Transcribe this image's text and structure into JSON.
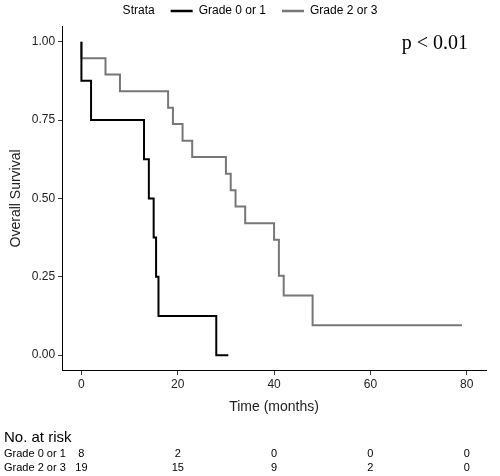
{
  "chart_data": {
    "type": "line",
    "line_style": "step",
    "legend_title": "Strata",
    "legend": "top",
    "annotation": "p < 0.01",
    "x_label": "Time (months)",
    "y_label": "Overall Survival",
    "xlim": [
      -4,
      84
    ],
    "xticks": [
      0,
      20,
      40,
      60,
      80
    ],
    "ylim": [
      -0.05,
      1.05
    ],
    "yticks": [
      {
        "value": 0,
        "label": "0.00"
      },
      0.25,
      {
        "value": 0.5,
        "label": "0.50"
      },
      0.75,
      {
        "value": 1,
        "label": "1.00"
      }
    ],
    "grid": false,
    "series": [
      {
        "name": "Grade 0 or 1",
        "color": "#000000",
        "x": [
          0,
          2,
          13,
          14,
          15,
          15.5,
          16,
          28,
          30.5
        ],
        "values": [
          1,
          0.875,
          0.75,
          0.625,
          0.5,
          0.375,
          0.25,
          0.125,
          0
        ]
      },
      {
        "name": "Grade 2 or 3",
        "color": "#777777",
        "x": [
          0,
          5,
          8,
          18,
          19,
          21,
          23,
          30,
          31,
          32,
          34,
          40,
          41,
          42,
          48,
          71,
          79
        ],
        "values": [
          1,
          0.947,
          0.895,
          0.842,
          0.789,
          0.737,
          0.684,
          0.632,
          0.579,
          0.526,
          0.474,
          0.421,
          0.368,
          0.253,
          0.19,
          0.095,
          0.095
        ]
      }
    ],
    "risk_table": {
      "title": "No. at risk",
      "times": [
        0,
        20,
        40,
        60,
        80
      ],
      "rows": [
        {
          "name": "Grade 0 or 1",
          "counts": [
            8,
            2,
            0,
            0,
            0
          ]
        },
        {
          "name": "Grade 2 or 3",
          "counts": [
            19,
            15,
            9,
            2,
            0
          ]
        }
      ]
    }
  }
}
